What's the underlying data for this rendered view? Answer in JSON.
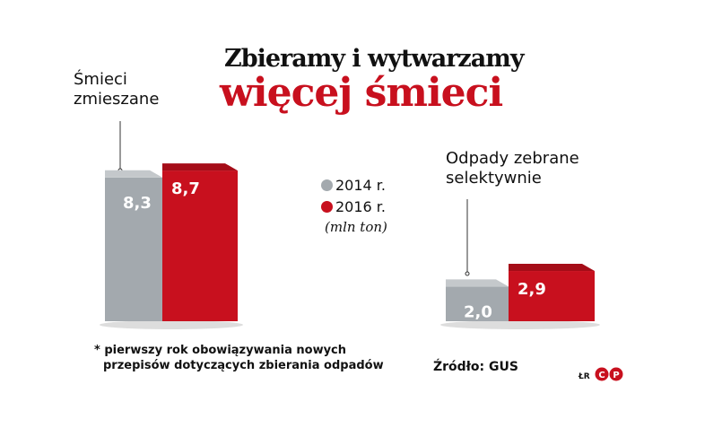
{
  "title_line1": "Zbieramy i wytwarzamy",
  "title_line2": "więcej śmieci",
  "legend": [
    {
      "label": "2014 r.",
      "color": "#a3a9ae"
    },
    {
      "label": "2016 r.",
      "color": "#c8101e"
    }
  ],
  "unit": "(mln ton)",
  "footnote_line1": "* pierwszy rok obowiązywania nowych",
  "footnote_line2": "przepisów dotyczących zbierania odpadów",
  "source": "Źródło: GUS",
  "logo_text": "ŁR",
  "logo_mark": "CP",
  "chart_data": [
    {
      "type": "bar",
      "title": "Śmieci zmieszane",
      "title_lines": [
        "Śmieci",
        "zmieszane"
      ],
      "categories": [
        "2014 r.",
        "2016 r."
      ],
      "values": [
        8.3,
        8.7
      ],
      "value_labels": [
        "8,3",
        "8,7"
      ]
    },
    {
      "type": "bar",
      "title": "Odpady zebrane selektywnie",
      "title_lines": [
        "Odpady zebrane",
        "selektywnie"
      ],
      "categories": [
        "2014 r.",
        "2016 r."
      ],
      "values": [
        2.0,
        2.9
      ],
      "value_labels": [
        "2,0",
        "2,9"
      ]
    }
  ]
}
